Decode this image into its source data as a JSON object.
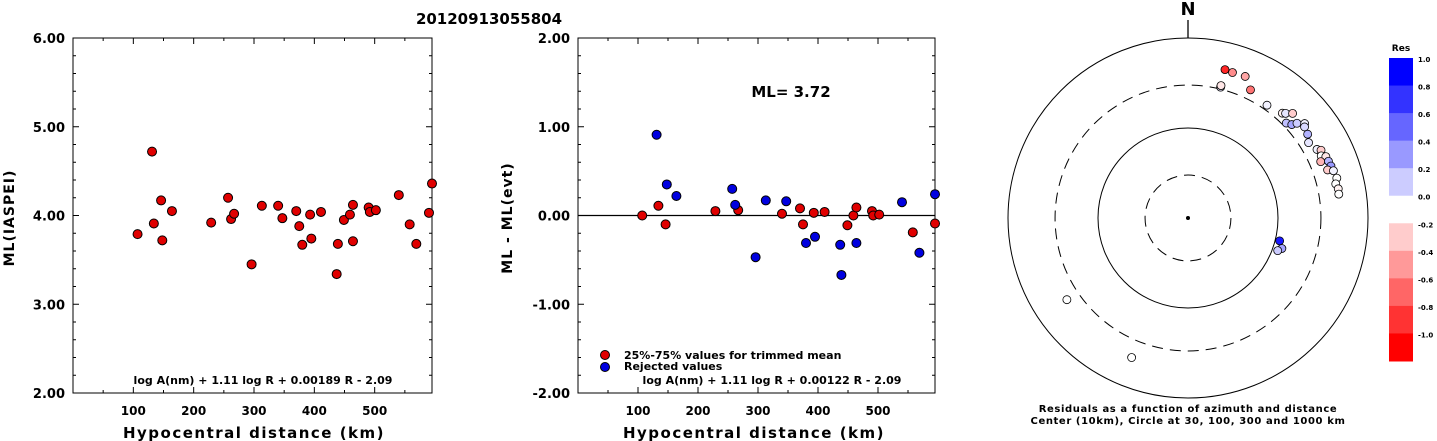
{
  "title": "20120913055804",
  "chart_data": [
    {
      "type": "scatter",
      "xlabel": "Hypocentral distance (km)",
      "ylabel": "ML(IASPEI)",
      "xlim": [
        0,
        595
      ],
      "ylim": [
        2.0,
        6.0
      ],
      "x_ticks": [
        "100",
        "200",
        "300",
        "400",
        "500"
      ],
      "x_tick_values": [
        100,
        200,
        300,
        400,
        500
      ],
      "y_ticks": [
        "2.00",
        "3.00",
        "4.00",
        "5.00",
        "6.00"
      ],
      "y_tick_values": [
        2,
        3,
        4,
        5,
        6
      ],
      "formula": "log A(nm) + 1.11 log R + 0.00189 R - 2.09",
      "marker_color": "#e00000",
      "points": [
        [
          107,
          3.79
        ],
        [
          131,
          4.72
        ],
        [
          134,
          3.91
        ],
        [
          146,
          4.17
        ],
        [
          148,
          3.72
        ],
        [
          164,
          4.05
        ],
        [
          229,
          3.92
        ],
        [
          257,
          4.2
        ],
        [
          262,
          3.96
        ],
        [
          267,
          4.02
        ],
        [
          296,
          3.45
        ],
        [
          313,
          4.11
        ],
        [
          340,
          4.11
        ],
        [
          347,
          3.97
        ],
        [
          370,
          4.05
        ],
        [
          375,
          3.88
        ],
        [
          380,
          3.67
        ],
        [
          393,
          4.01
        ],
        [
          395,
          3.74
        ],
        [
          411,
          4.04
        ],
        [
          437,
          3.34
        ],
        [
          439,
          3.68
        ],
        [
          449,
          3.95
        ],
        [
          459,
          4.01
        ],
        [
          464,
          4.12
        ],
        [
          464,
          3.71
        ],
        [
          490,
          4.09
        ],
        [
          492,
          4.04
        ],
        [
          502,
          4.06
        ],
        [
          540,
          4.23
        ],
        [
          558,
          3.9
        ],
        [
          569,
          3.68
        ],
        [
          590,
          4.03
        ],
        [
          595,
          4.36
        ]
      ]
    },
    {
      "type": "scatter",
      "xlabel": "Hypocentral distance (km)",
      "ylabel": "ML - ML(evt)",
      "xlim": [
        0,
        595
      ],
      "ylim": [
        -2.0,
        2.0
      ],
      "x_ticks": [
        "100",
        "200",
        "300",
        "400",
        "500"
      ],
      "x_tick_values": [
        100,
        200,
        300,
        400,
        500
      ],
      "y_ticks": [
        "-2.00",
        "-1.00",
        "0.00",
        "1.00",
        "2.00"
      ],
      "y_tick_values": [
        -2,
        -1,
        0,
        1,
        2
      ],
      "annotation": "ML= 3.72",
      "formula": "log A(nm) + 1.11 log R + 0.00122 R - 2.09",
      "legend": [
        {
          "label": "25%-75% values for trimmed mean",
          "color": "#e00000"
        },
        {
          "label": "Rejected values",
          "color": "#0000e0"
        }
      ],
      "series": [
        {
          "color": "#e00000",
          "points": [
            [
              107,
              0.0
            ],
            [
              134,
              0.11
            ],
            [
              146,
              -0.1
            ],
            [
              229,
              0.05
            ],
            [
              267,
              0.06
            ],
            [
              340,
              0.02
            ],
            [
              370,
              0.08
            ],
            [
              375,
              -0.1
            ],
            [
              393,
              0.03
            ],
            [
              411,
              0.04
            ],
            [
              449,
              -0.11
            ],
            [
              459,
              0.0
            ],
            [
              464,
              0.09
            ],
            [
              490,
              0.05
            ],
            [
              492,
              0.0
            ],
            [
              502,
              0.01
            ],
            [
              558,
              -0.19
            ],
            [
              595,
              -0.09
            ]
          ]
        },
        {
          "color": "#0000e0",
          "points": [
            [
              131,
              0.91
            ],
            [
              148,
              0.35
            ],
            [
              164,
              0.22
            ],
            [
              257,
              0.3
            ],
            [
              262,
              0.12
            ],
            [
              296,
              -0.47
            ],
            [
              313,
              0.17
            ],
            [
              347,
              0.16
            ],
            [
              380,
              -0.31
            ],
            [
              395,
              -0.24
            ],
            [
              437,
              -0.33
            ],
            [
              439,
              -0.67
            ],
            [
              464,
              -0.31
            ],
            [
              540,
              0.15
            ],
            [
              569,
              -0.42
            ],
            [
              595,
              0.24
            ]
          ]
        }
      ]
    },
    {
      "type": "scatter",
      "subtype": "polar residuals",
      "north_label": "N",
      "caption_line1": "Residuals as a function of azimuth and distance",
      "caption_line2": "Center (10km), Circle at 30, 100, 300 and 1000 km",
      "rings_km": [
        30,
        100,
        300,
        1000
      ],
      "ring_styles": [
        "dashed",
        "solid",
        "dashed",
        "solid"
      ],
      "colorbar_title": "Res",
      "colorbar_ticks": [
        "1.0",
        "0.8",
        "0.6",
        "0.4",
        "0.2",
        "0.0",
        "-0.2",
        "-0.4",
        "-0.6",
        "-0.8",
        "-1.0"
      ],
      "colorbar_positive": "#0000ff",
      "colorbar_negative": "#ff0000",
      "points": [
        {
          "azimuth_deg": 14,
          "distance_km": 500,
          "res": -0.85
        },
        {
          "azimuth_deg": 17,
          "distance_km": 490,
          "res": -0.45
        },
        {
          "azimuth_deg": 22,
          "distance_km": 497,
          "res": -0.35
        },
        {
          "azimuth_deg": 26,
          "distance_km": 384,
          "res": -0.55
        },
        {
          "azimuth_deg": 14,
          "distance_km": 315,
          "res": 0.1
        },
        {
          "azimuth_deg": 14,
          "distance_km": 328,
          "res": -0.1
        },
        {
          "azimuth_deg": 35,
          "distance_km": 339,
          "res": 0.05
        },
        {
          "azimuth_deg": 42,
          "distance_km": 369,
          "res": -0.05
        },
        {
          "azimuth_deg": 43,
          "distance_km": 389,
          "res": 0.1
        },
        {
          "azimuth_deg": 45,
          "distance_km": 440,
          "res": -0.2
        },
        {
          "azimuth_deg": 46,
          "distance_km": 330,
          "res": 0.25
        },
        {
          "azimuth_deg": 48,
          "distance_km": 356,
          "res": 0.35
        },
        {
          "azimuth_deg": 49,
          "distance_km": 402,
          "res": 0.2
        },
        {
          "azimuth_deg": 51,
          "distance_km": 465,
          "res": 0.05
        },
        {
          "azimuth_deg": 52,
          "distance_km": 440,
          "res": 0.15
        },
        {
          "azimuth_deg": 55,
          "distance_km": 420,
          "res": 0.3
        },
        {
          "azimuth_deg": 58,
          "distance_km": 380,
          "res": 0.1
        },
        {
          "azimuth_deg": 62,
          "distance_km": 420,
          "res": 0.05
        },
        {
          "azimuth_deg": 63,
          "distance_km": 456,
          "res": -0.2
        },
        {
          "azimuth_deg": 65,
          "distance_km": 430,
          "res": 0.0
        },
        {
          "azimuth_deg": 66,
          "distance_km": 475,
          "res": -0.1
        },
        {
          "azimuth_deg": 67,
          "distance_km": 400,
          "res": -0.3
        },
        {
          "azimuth_deg": 68,
          "distance_km": 482,
          "res": 0.3
        },
        {
          "azimuth_deg": 70,
          "distance_km": 490,
          "res": 0.4
        },
        {
          "azimuth_deg": 71,
          "distance_km": 437,
          "res": -0.2
        },
        {
          "azimuth_deg": 72,
          "distance_km": 500,
          "res": 0.05
        },
        {
          "azimuth_deg": 75,
          "distance_km": 515,
          "res": 0.0
        },
        {
          "azimuth_deg": 77,
          "distance_km": 484,
          "res": 0.0
        },
        {
          "azimuth_deg": 79,
          "distance_km": 502,
          "res": -0.05
        },
        {
          "azimuth_deg": 81,
          "distance_km": 497,
          "res": 0.0
        },
        {
          "azimuth_deg": 104,
          "distance_km": 112,
          "res": 0.9
        },
        {
          "azimuth_deg": 108,
          "distance_km": 125,
          "res": 0.35
        },
        {
          "azimuth_deg": 110,
          "distance_km": 115,
          "res": 0.2
        },
        {
          "azimuth_deg": 202,
          "distance_km": 470,
          "res": 0.0
        },
        {
          "azimuth_deg": 236,
          "distance_km": 420,
          "res": 0.0
        }
      ]
    }
  ]
}
